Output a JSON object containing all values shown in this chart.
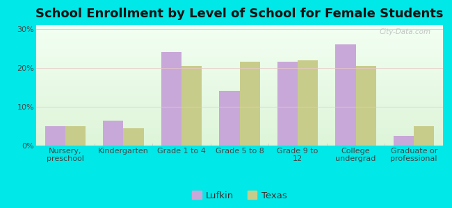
{
  "title": "School Enrollment by Level of School for Female Students",
  "categories": [
    "Nursery,\npreschool",
    "Kindergarten",
    "Grade 1 to 4",
    "Grade 5 to 8",
    "Grade 9 to\n12",
    "College\nundergrad",
    "Graduate or\nprofessional"
  ],
  "lufkin": [
    5.0,
    6.5,
    24.0,
    14.0,
    21.5,
    26.0,
    2.5
  ],
  "texas": [
    5.0,
    4.5,
    20.5,
    21.5,
    22.0,
    20.5,
    5.0
  ],
  "lufkin_color": "#c8a8d8",
  "texas_color": "#c8cc8a",
  "background_outer": "#00e8e8",
  "background_inner_top": "#f0fff0",
  "background_inner_bottom": "#d0ecc0",
  "grid_color": "#e0e0e0",
  "yticks": [
    0,
    10,
    20,
    30
  ],
  "ylim": [
    0,
    31
  ],
  "legend_labels": [
    "Lufkin",
    "Texas"
  ],
  "bar_width": 0.35,
  "title_fontsize": 13,
  "tick_fontsize": 8,
  "legend_fontsize": 9.5
}
